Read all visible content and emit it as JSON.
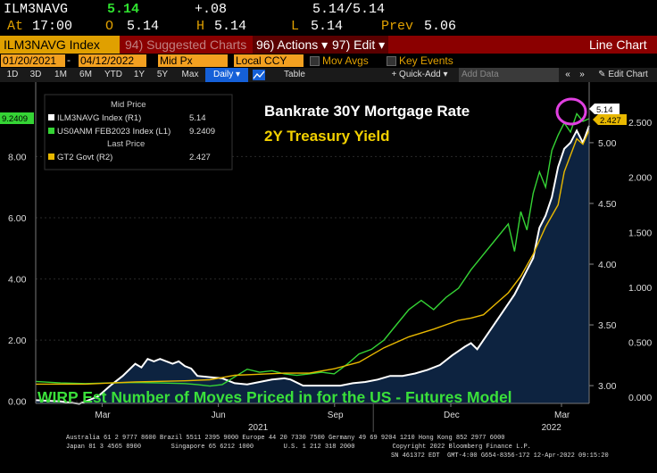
{
  "quote": {
    "ticker": "ILM3NAVG",
    "last": "5.14",
    "change": "+.08",
    "bid_ask": "5.14/5.14",
    "at_label": "At",
    "time": "17:00",
    "open_label": "O",
    "open": "5.14",
    "high_label": "H",
    "high": "5.14",
    "low_label": "L",
    "low": "5.14",
    "prev_label": "Prev",
    "prev": "5.06"
  },
  "toolbar": {
    "security": "ILM3NAVG Index",
    "suggested": "94) Suggested Charts",
    "actions": "96) Actions ▾",
    "edit": "97) Edit ▾",
    "chart_type": "Line Chart"
  },
  "controls": {
    "start_date": "01/20/2021",
    "end_date": "04/12/2022",
    "field": "Mid Px",
    "currency": "Local CCY",
    "mov_avgs": "Mov Avgs",
    "key_events": "Key Events"
  },
  "ranges": [
    "1D",
    "3D",
    "1M",
    "6M",
    "YTD",
    "1Y",
    "5Y",
    "Max"
  ],
  "period": "Daily ▾",
  "table_label": "Table",
  "quick_add": "+ Quick-Add ▾",
  "add_data_placeholder": "Add Data",
  "edit_chart": "Edit Chart",
  "legend": {
    "mid_price_header": "Mid Price",
    "last_price_header": "Last Price",
    "items": [
      {
        "name": "ILM3NAVG Index  (R1)",
        "value": "5.14",
        "color": "#ffffff"
      },
      {
        "name": "US0ANM FEB2023 Index  (L1)",
        "value": "9.2409",
        "color": "#35d435"
      },
      {
        "name": "GT2 Govt  (R2)",
        "value": "2.427",
        "color": "#e8b800"
      }
    ]
  },
  "annotations": {
    "title1": "Bankrate 30Y Mortgage Rate",
    "title2": "2Y Treasury Yield",
    "bottom": "WIRP Est Number of Moves Priced in for the US - Futures Model"
  },
  "axis_tags": {
    "left": "9.2409",
    "r1": "5.14",
    "r2": "2.427"
  },
  "footer": {
    "line1": "Australia 61 2 9777 8600 Brazil 5511 2395 9000 Europe 44 20 7330 7500 Germany 49 69 9204 1210 Hong Kong 852 2977 6000",
    "line2": "Japan 81 3 4565 8900        Singapore 65 6212 1000        U.S. 1 212 318 2000          Copyright 2022 Bloomberg Finance L.P.",
    "line3": "SN 461372 EDT  GMT-4:00 G654-8356-172 12-Apr-2022 09:15:20"
  },
  "colors": {
    "header_bar": "#8b0000",
    "accent": "#e0a000",
    "selected": "#1560d8",
    "plot_area": "#0d2340",
    "white_series": "#ffffff",
    "green_series": "#35d435",
    "gold_series": "#e8b800",
    "circle": "#e040e0"
  },
  "chart_data": {
    "type": "line",
    "x_tick_labels": [
      "Mar",
      "Jun",
      "Sep",
      "Dec",
      "Mar"
    ],
    "x_year_labels": [
      "2021",
      "2022"
    ],
    "left_axis": {
      "ticks": [
        "0.00",
        "2.00",
        "4.00",
        "6.00",
        "8.00"
      ],
      "range": [
        -0.3,
        10.2
      ]
    },
    "right_axis_1": {
      "ticks": [
        "3.00",
        "3.50",
        "4.00",
        "4.50",
        "5.00"
      ],
      "range": [
        2.795,
        5.44
      ]
    },
    "right_axis_2": {
      "ticks": [
        "0.000",
        "0.500",
        "1.000",
        "1.500",
        "2.000",
        "2.500"
      ],
      "range": [
        -0.12,
        2.8
      ]
    },
    "series": [
      {
        "name": "ILM3NAVG Index (R1)",
        "axis": "right1",
        "color": "#ffffff",
        "points": [
          [
            0,
            2.88
          ],
          [
            4,
            2.87
          ],
          [
            7,
            2.85
          ],
          [
            10,
            2.91
          ],
          [
            12,
            3.0
          ],
          [
            14,
            3.08
          ],
          [
            16,
            3.18
          ],
          [
            17,
            3.15
          ],
          [
            18,
            3.22
          ],
          [
            19,
            3.2
          ],
          [
            20,
            3.22
          ],
          [
            22,
            3.18
          ],
          [
            23,
            3.2
          ],
          [
            24,
            3.16
          ],
          [
            25,
            3.14
          ],
          [
            26,
            3.08
          ],
          [
            28,
            3.07
          ],
          [
            30,
            3.06
          ],
          [
            32,
            3.02
          ],
          [
            34,
            3.01
          ],
          [
            36,
            3.03
          ],
          [
            38,
            3.05
          ],
          [
            40,
            3.06
          ],
          [
            41,
            3.05
          ],
          [
            43,
            3.0
          ],
          [
            45,
            3.0
          ],
          [
            47,
            3.0
          ],
          [
            49,
            3.0
          ],
          [
            51,
            3.02
          ],
          [
            53,
            3.03
          ],
          [
            55,
            3.05
          ],
          [
            57,
            3.08
          ],
          [
            59,
            3.08
          ],
          [
            61,
            3.1
          ],
          [
            63,
            3.13
          ],
          [
            65,
            3.17
          ],
          [
            67,
            3.25
          ],
          [
            69,
            3.32
          ],
          [
            70,
            3.35
          ],
          [
            71,
            3.3
          ],
          [
            73,
            3.45
          ],
          [
            75,
            3.6
          ],
          [
            77,
            3.75
          ],
          [
            79,
            3.95
          ],
          [
            80,
            4.05
          ],
          [
            81,
            4.3
          ],
          [
            82,
            4.4
          ],
          [
            83,
            4.55
          ],
          [
            84,
            4.8
          ],
          [
            85,
            4.95
          ],
          [
            86,
            5.0
          ],
          [
            87,
            5.1
          ],
          [
            88,
            5.0
          ],
          [
            89,
            5.14
          ]
        ]
      },
      {
        "name": "US0ANM FEB2023 Index (L1)",
        "axis": "left",
        "color": "#35d435",
        "points": [
          [
            0,
            0.65
          ],
          [
            4,
            0.6
          ],
          [
            8,
            0.58
          ],
          [
            12,
            0.6
          ],
          [
            16,
            0.62
          ],
          [
            20,
            0.6
          ],
          [
            24,
            0.58
          ],
          [
            26,
            0.55
          ],
          [
            28,
            0.5
          ],
          [
            30,
            0.55
          ],
          [
            32,
            0.8
          ],
          [
            34,
            1.05
          ],
          [
            36,
            0.95
          ],
          [
            38,
            1.0
          ],
          [
            40,
            0.9
          ],
          [
            42,
            0.85
          ],
          [
            44,
            0.9
          ],
          [
            46,
            0.95
          ],
          [
            48,
            0.9
          ],
          [
            50,
            1.2
          ],
          [
            52,
            1.55
          ],
          [
            54,
            1.7
          ],
          [
            56,
            2.0
          ],
          [
            58,
            2.5
          ],
          [
            60,
            3.0
          ],
          [
            62,
            3.3
          ],
          [
            64,
            3.0
          ],
          [
            66,
            3.4
          ],
          [
            68,
            3.7
          ],
          [
            70,
            4.3
          ],
          [
            72,
            4.8
          ],
          [
            74,
            5.3
          ],
          [
            76,
            5.8
          ],
          [
            77,
            4.9
          ],
          [
            78,
            6.2
          ],
          [
            79,
            5.6
          ],
          [
            80,
            6.8
          ],
          [
            81,
            7.5
          ],
          [
            82,
            7.0
          ],
          [
            83,
            8.2
          ],
          [
            84,
            8.7
          ],
          [
            85,
            9.1
          ],
          [
            86,
            8.8
          ],
          [
            87,
            9.4
          ],
          [
            88,
            9.15
          ],
          [
            89,
            9.24
          ]
        ]
      },
      {
        "name": "GT2 Govt (R2)",
        "axis": "right2",
        "color": "#e8b800",
        "points": [
          [
            0,
            0.12
          ],
          [
            8,
            0.12
          ],
          [
            16,
            0.14
          ],
          [
            24,
            0.15
          ],
          [
            28,
            0.16
          ],
          [
            32,
            0.2
          ],
          [
            36,
            0.21
          ],
          [
            40,
            0.22
          ],
          [
            44,
            0.22
          ],
          [
            48,
            0.26
          ],
          [
            52,
            0.32
          ],
          [
            56,
            0.45
          ],
          [
            60,
            0.55
          ],
          [
            64,
            0.62
          ],
          [
            68,
            0.7
          ],
          [
            70,
            0.72
          ],
          [
            72,
            0.75
          ],
          [
            74,
            0.85
          ],
          [
            76,
            0.95
          ],
          [
            78,
            1.1
          ],
          [
            80,
            1.3
          ],
          [
            82,
            1.55
          ],
          [
            84,
            1.75
          ],
          [
            85,
            2.05
          ],
          [
            86,
            2.2
          ],
          [
            87,
            2.35
          ],
          [
            88,
            2.3
          ],
          [
            89,
            2.427
          ]
        ]
      }
    ]
  }
}
